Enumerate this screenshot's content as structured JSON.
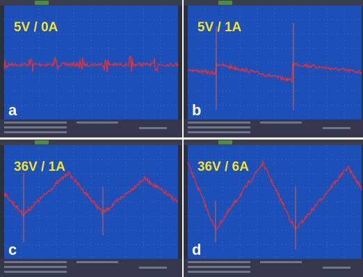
{
  "panels": [
    {
      "label": "5V / 0A",
      "letter": "a"
    },
    {
      "label": "5V / 1A",
      "letter": "b"
    },
    {
      "label": "36V / 1A",
      "letter": "c"
    },
    {
      "label": "36V / 6A",
      "letter": "d"
    }
  ]
}
